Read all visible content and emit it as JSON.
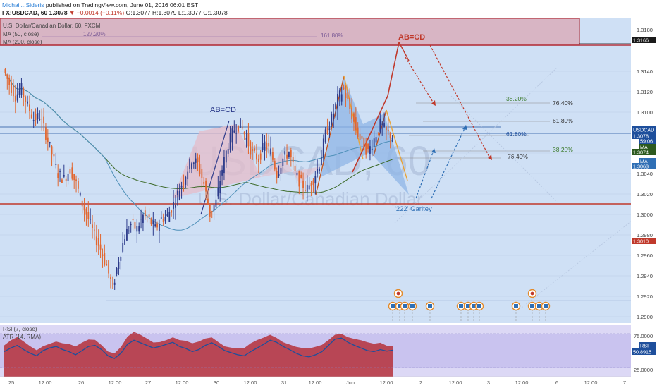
{
  "header": {
    "author": "Michail...Sideris",
    "published_text": "published on TradingView.com, June 01, 2016 06:01 EST",
    "symbol": "FX:USDCAD, 60",
    "last": "1.3078",
    "change": "−0.0014 (−0.11%)",
    "open": "O:1.3077",
    "high": "H:1.3079",
    "low": "L:1.3077",
    "close": "C:1.3078"
  },
  "legend": {
    "title": "U.S. Dollar/Canadian Dollar, 60, FXCM",
    "ma50": "MA (50, close)",
    "ma200": "MA (200, close)",
    "rsi": "RSI (7, close)",
    "atr": "ATR (14, RMA)"
  },
  "watermark": {
    "symbol": "USDCAD, 60",
    "name": "U.S. Dollar/Canadian Dollar"
  },
  "annotations": {
    "abcd_left": "AB=CD",
    "abcd_top": "AB=CD",
    "gartley": "'222' Garltey",
    "fib_127": "127.20%",
    "fib_161": "161.80%",
    "fib_382_a": "38.20%",
    "fib_764_a": "76.40%",
    "fib_618_a": "61.80%",
    "fib_618_b": "61.80%",
    "fib_382_b": "38.20%",
    "fib_764_b": "76.40%"
  },
  "price_axis": {
    "ticks": [
      "1.3180",
      "1.3140",
      "1.3120",
      "1.3100",
      "1.3060",
      "1.3040",
      "1.3020",
      "1.3000",
      "1.2980",
      "1.2960",
      "1.2940",
      "1.2920",
      "1.2900"
    ],
    "badges": [
      {
        "label": "1.3166",
        "color": "#1a1a1a"
      },
      {
        "label": "USDCAD",
        "color": "#1e4f9c"
      },
      {
        "label": "1.3078",
        "color": "#1e4f9c"
      },
      {
        "label": "59:06",
        "color": "#1e4f9c"
      },
      {
        "label": "MA",
        "color": "#2d5a1f"
      },
      {
        "label": "1.3074",
        "color": "#2d5a1f"
      },
      {
        "label": "MA",
        "color": "#2f6fb5"
      },
      {
        "label": "1.3063",
        "color": "#2f6fb5"
      },
      {
        "label": "1.3010",
        "color": "#c0392b"
      },
      {
        "label": "RSI",
        "color": "#1e4f9c"
      },
      {
        "label": "50.8915",
        "color": "#1e4f9c"
      }
    ],
    "rsi_ticks": [
      "75.0000",
      "25.0000"
    ]
  },
  "time_axis": {
    "labels": [
      "25",
      "12:00",
      "26",
      "12:00",
      "27",
      "12:00",
      "30",
      "12:00",
      "31",
      "12:00",
      "Jun",
      "12:00",
      "2",
      "12:00",
      "3",
      "12:00",
      "6",
      "12:00",
      "7"
    ]
  },
  "chart_data": {
    "type": "candlestick",
    "symbol": "USDCAD",
    "timeframe": "60",
    "ylim": [
      1.2895,
      1.319
    ],
    "levels": {
      "resistance_zone": [
        1.3166,
        1.319
      ],
      "support": 1.301,
      "current": 1.3078,
      "ma50": 1.3063,
      "ma200": 1.3074
    },
    "price_path": [
      1.3145,
      1.313,
      1.3118,
      1.3125,
      1.3108,
      1.3095,
      1.3098,
      1.308,
      1.306,
      1.304,
      1.3035,
      1.3045,
      1.303,
      1.301,
      1.2995,
      1.2978,
      1.2965,
      1.2948,
      1.2925,
      1.2955,
      1.2978,
      1.299,
      1.2985,
      1.2998,
      1.2994,
      1.2985,
      1.2995,
      1.2998,
      1.301,
      1.3025,
      1.304,
      1.3055,
      1.305,
      1.303,
      1.3,
      1.3012,
      1.3045,
      1.307,
      1.3085,
      1.309,
      1.3075,
      1.306,
      1.3055,
      1.307,
      1.3062,
      1.304,
      1.3055,
      1.3062,
      1.304,
      1.303,
      1.3025,
      1.3035,
      1.305,
      1.308,
      1.3095,
      1.3115,
      1.3125,
      1.3105,
      1.3085,
      1.307,
      1.3062,
      1.3075,
      1.309,
      1.3082,
      1.3078
    ],
    "rsi": [
      48,
      55,
      60,
      52,
      45,
      40,
      50,
      55,
      58,
      52,
      48,
      42,
      50,
      58,
      60,
      52,
      40,
      35,
      45,
      62,
      70,
      65,
      60,
      55,
      58,
      62,
      66,
      58,
      54,
      48,
      52,
      60,
      65,
      58,
      50,
      46,
      42,
      40,
      48,
      55,
      62,
      70,
      66,
      58,
      52,
      45,
      40,
      38,
      42,
      48,
      60,
      72,
      74,
      66,
      60,
      55,
      50,
      48,
      52,
      49,
      51
    ]
  }
}
